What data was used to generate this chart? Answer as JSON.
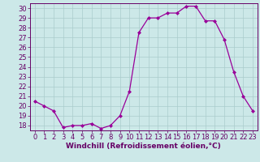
{
  "x": [
    0,
    1,
    2,
    3,
    4,
    5,
    6,
    7,
    8,
    9,
    10,
    11,
    12,
    13,
    14,
    15,
    16,
    17,
    18,
    19,
    20,
    21,
    22,
    23
  ],
  "y": [
    20.5,
    20.0,
    19.5,
    17.8,
    18.0,
    18.0,
    18.2,
    17.7,
    18.0,
    19.0,
    21.5,
    27.5,
    29.0,
    29.0,
    29.5,
    29.5,
    30.2,
    30.2,
    28.7,
    28.7,
    26.8,
    23.5,
    21.0,
    19.5
  ],
  "line_color": "#990099",
  "marker": "D",
  "marker_size": 2.0,
  "bg_color": "#cce8e8",
  "grid_color": "#aacccc",
  "xlabel": "Windchill (Refroidissement éolien,°C)",
  "xlabel_color": "#660066",
  "xlabel_fontsize": 6.5,
  "tick_color": "#660066",
  "tick_fontsize": 6.0,
  "ylim": [
    17.5,
    30.5
  ],
  "xlim": [
    -0.5,
    23.5
  ],
  "yticks": [
    18,
    19,
    20,
    21,
    22,
    23,
    24,
    25,
    26,
    27,
    28,
    29,
    30
  ],
  "xticks": [
    0,
    1,
    2,
    3,
    4,
    5,
    6,
    7,
    8,
    9,
    10,
    11,
    12,
    13,
    14,
    15,
    16,
    17,
    18,
    19,
    20,
    21,
    22,
    23
  ]
}
